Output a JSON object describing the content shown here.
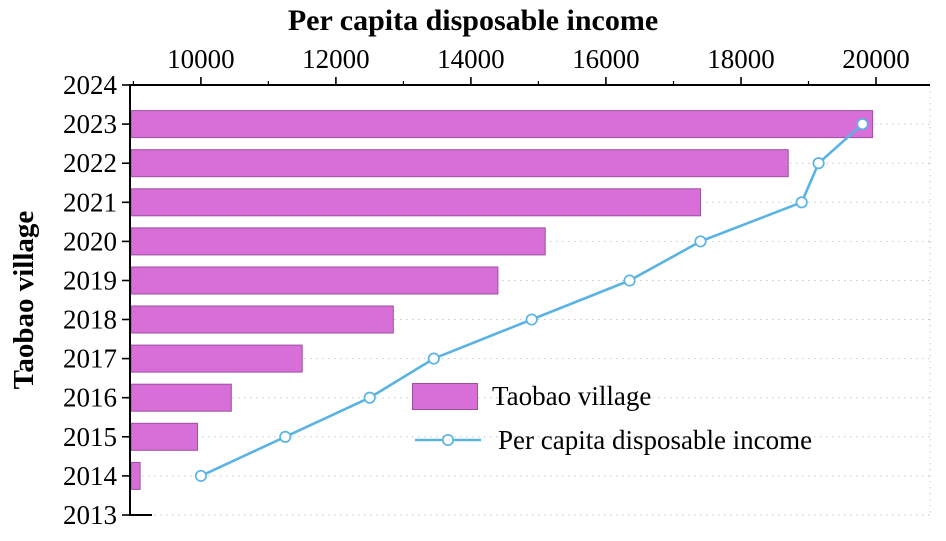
{
  "chart_data": {
    "type": "bar",
    "orientation": "horizontal",
    "title": "Per capita disposable income",
    "x_axis": {
      "label": "Per capita disposable income",
      "position": "top",
      "min": 8950,
      "max": 20800,
      "ticks": [
        10000,
        12000,
        14000,
        16000,
        18000,
        20000
      ]
    },
    "y_axis": {
      "label": "Taobao village",
      "categories": [
        "2024",
        "2023",
        "2022",
        "2021",
        "2020",
        "2019",
        "2018",
        "2017",
        "2016",
        "2015",
        "2014",
        "2013"
      ]
    },
    "series": [
      {
        "name": "Taobao village",
        "type": "bar",
        "color": "#d86ed8",
        "border_color": "#9e4f9e",
        "values": [
          null,
          19950,
          18700,
          17400,
          15100,
          14400,
          12850,
          11500,
          10450,
          9950,
          9100,
          null
        ]
      },
      {
        "name": "Per capita disposable income",
        "type": "line",
        "color": "#5bb3e4",
        "marker": "open-circle",
        "values": [
          null,
          19800,
          19150,
          18900,
          17400,
          16350,
          14900,
          13450,
          12500,
          11250,
          10000,
          null
        ]
      }
    ],
    "legend": {
      "position": "inside-lower-right",
      "items": [
        "Taobao village",
        "Per capita disposable income"
      ]
    },
    "grid": "dotted-horizontal"
  }
}
